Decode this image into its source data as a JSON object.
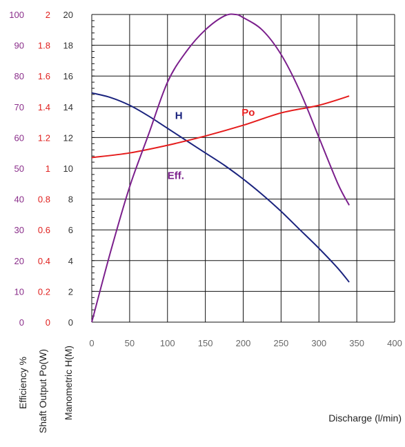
{
  "chart_data": {
    "type": "line",
    "xlabel": "Discharge (l/min)",
    "xlim": [
      0,
      400
    ],
    "x_ticks": [
      "0",
      "50",
      "100",
      "150",
      "200",
      "250",
      "300",
      "350",
      "400"
    ],
    "grid": true,
    "y_axes": [
      {
        "id": "efficiency",
        "label": "Efficiency %",
        "color": "#8a2e8a",
        "lim": [
          0,
          100
        ],
        "ticks": [
          "0",
          "10",
          "20",
          "30",
          "40",
          "50",
          "60",
          "70",
          "80",
          "90",
          "100"
        ]
      },
      {
        "id": "power",
        "label": "Shaft Output Po(W)",
        "color": "#e0201e",
        "lim": [
          0,
          2
        ],
        "ticks": [
          "0",
          "0.2",
          "0.4",
          "0.6",
          "0.8",
          "1",
          "1.2",
          "1.4",
          "1.6",
          "1.8",
          "2"
        ]
      },
      {
        "id": "head",
        "label": "Manometric H(M)",
        "color": "#333333",
        "lim": [
          0,
          20
        ],
        "ticks": [
          "0",
          "2",
          "4",
          "6",
          "8",
          "10",
          "12",
          "14",
          "16",
          "18",
          "20"
        ]
      }
    ],
    "series": [
      {
        "name": "H",
        "axis": "head",
        "color": "#1a237e",
        "x": [
          0,
          25,
          50,
          75,
          100,
          125,
          150,
          175,
          200,
          225,
          250,
          275,
          300,
          325,
          340
        ],
        "values": [
          14.9,
          14.6,
          14.1,
          13.4,
          12.6,
          11.8,
          11.0,
          10.2,
          9.3,
          8.3,
          7.2,
          6.0,
          4.8,
          3.5,
          2.6
        ]
      },
      {
        "name": "Po",
        "axis": "power",
        "color": "#e51c1c",
        "x": [
          0,
          50,
          100,
          150,
          200,
          250,
          300,
          340
        ],
        "values": [
          1.07,
          1.1,
          1.15,
          1.21,
          1.28,
          1.36,
          1.41,
          1.47
        ]
      },
      {
        "name": "Eff.",
        "axis": "efficiency",
        "color": "#7b1f8c",
        "x": [
          0,
          25,
          50,
          75,
          100,
          125,
          150,
          175,
          190,
          200,
          225,
          250,
          275,
          300,
          325,
          340
        ],
        "values": [
          0,
          23,
          44,
          61,
          78,
          88,
          95,
          99.5,
          100,
          99,
          95,
          87,
          75,
          60,
          45,
          38
        ]
      }
    ],
    "series_labels": [
      {
        "text": "H",
        "color": "#1a237e",
        "at": [
          110,
          13.2
        ]
      },
      {
        "text": "Po",
        "color": "#e51c1c",
        "at": [
          198,
          13.4
        ]
      },
      {
        "text": "Eff.",
        "color": "#7b1f8c",
        "at": [
          100,
          9.3
        ]
      }
    ]
  }
}
